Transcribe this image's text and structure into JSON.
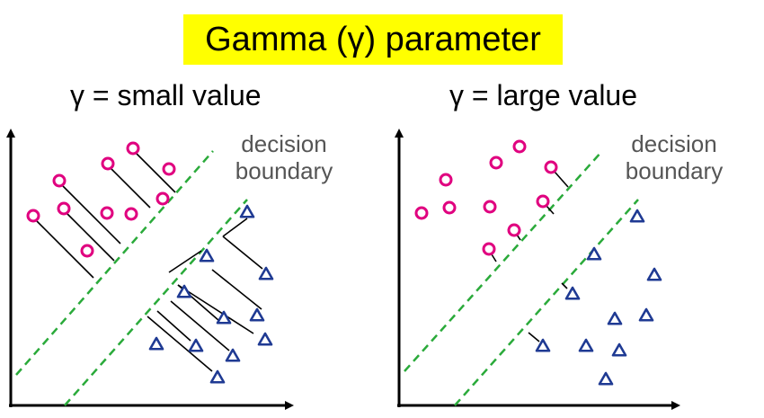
{
  "title": "Gamma (γ) parameter",
  "colors": {
    "title_bg": "#ffff00",
    "circle": "#e0007f",
    "triangle": "#1f3a93",
    "boundary": "#2aaa3a",
    "label": "#555555"
  },
  "panels": [
    {
      "title": "γ = small value",
      "boundary_label": [
        "decision",
        "boundary"
      ],
      "circles": [
        [
          148,
          165
        ],
        [
          120,
          182
        ],
        [
          188,
          188
        ],
        [
          66,
          201
        ],
        [
          181,
          221
        ],
        [
          71,
          232
        ],
        [
          119,
          237
        ],
        [
          146,
          238
        ],
        [
          37,
          240
        ],
        [
          97,
          279
        ]
      ],
      "triangles": [
        [
          275,
          236
        ],
        [
          230,
          285
        ],
        [
          296,
          305
        ],
        [
          205,
          325
        ],
        [
          249,
          354
        ],
        [
          286,
          351
        ],
        [
          295,
          378
        ],
        [
          174,
          383
        ],
        [
          218,
          385
        ],
        [
          259,
          396
        ],
        [
          242,
          420
        ]
      ],
      "influence_lines": [
        [
          [
            152,
            171
          ],
          [
            195,
            214
          ]
        ],
        [
          [
            124,
            188
          ],
          [
            167,
            231
          ]
        ],
        [
          [
            70,
            207
          ],
          [
            134,
            271
          ]
        ],
        [
          [
            75,
            238
          ],
          [
            127,
            290
          ]
        ],
        [
          [
            41,
            246
          ],
          [
            104,
            309
          ]
        ],
        [
          [
            275,
            243
          ],
          [
            248,
            263
          ]
        ],
        [
          [
            292,
            299
          ],
          [
            248,
            263
          ]
        ],
        [
          [
            224,
            279
          ],
          [
            188,
            303
          ]
        ],
        [
          [
            291,
            344
          ],
          [
            236,
            300
          ]
        ],
        [
          [
            282,
            371
          ],
          [
            198,
            317
          ]
        ],
        [
          [
            255,
            390
          ],
          [
            190,
            335
          ]
        ],
        [
          [
            244,
            357
          ],
          [
            198,
            317
          ]
        ],
        [
          [
            212,
            379
          ],
          [
            175,
            346
          ]
        ],
        [
          [
            236,
            413
          ],
          [
            164,
            352
          ]
        ]
      ]
    },
    {
      "title": "γ = large value",
      "boundary_label": [
        "decision",
        "boundary"
      ],
      "circles": [
        [
          578,
          163
        ],
        [
          552,
          181
        ],
        [
          613,
          186
        ],
        [
          496,
          200
        ],
        [
          604,
          224
        ],
        [
          500,
          231
        ],
        [
          545,
          230
        ],
        [
          469,
          237
        ],
        [
          572,
          256
        ],
        [
          544,
          277
        ]
      ],
      "triangles": [
        [
          709,
          241
        ],
        [
          661,
          283
        ],
        [
          728,
          306
        ],
        [
          637,
          327
        ],
        [
          719,
          351
        ],
        [
          684,
          355
        ],
        [
          652,
          385
        ],
        [
          604,
          385
        ],
        [
          689,
          390
        ],
        [
          674,
          422
        ]
      ],
      "influence_lines": [
        [
          [
            617,
            191
          ],
          [
            632,
            208
          ]
        ],
        [
          [
            608,
            229
          ],
          [
            616,
            238
          ]
        ],
        [
          [
            575,
            261
          ],
          [
            579,
            267
          ]
        ],
        [
          [
            547,
            283
          ],
          [
            552,
            291
          ]
        ],
        [
          [
            631,
            321
          ],
          [
            625,
            315
          ]
        ],
        [
          [
            600,
            380
          ],
          [
            588,
            370
          ]
        ]
      ]
    }
  ]
}
